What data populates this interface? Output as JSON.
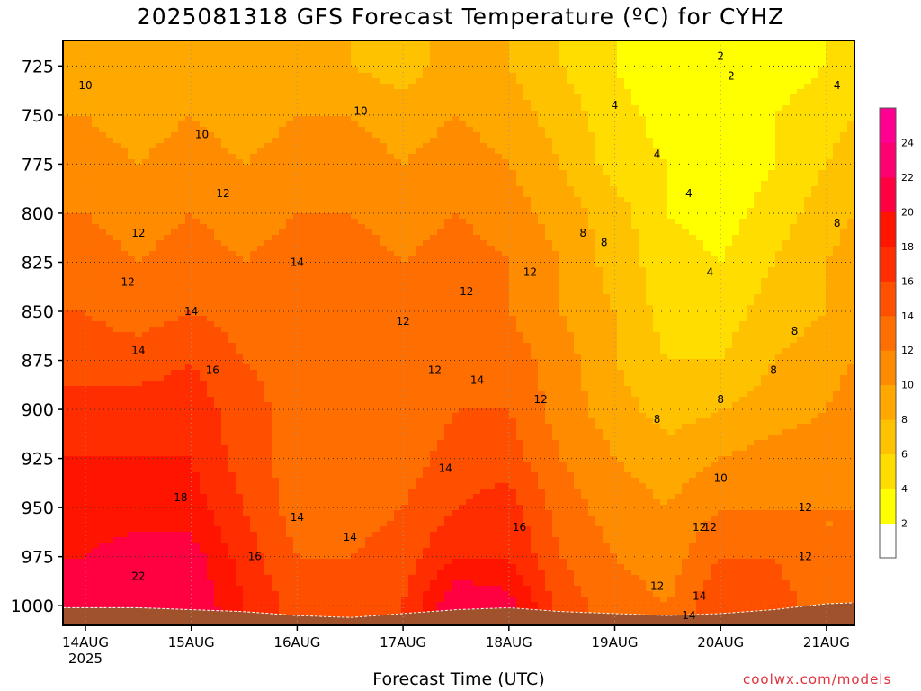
{
  "title": "2025081318 GFS Forecast Temperature (ºC) for CYHZ",
  "xlabel": "Forecast Time (UTC)",
  "credit": "coolwx.com/models",
  "chart_data": {
    "type": "heatmap",
    "title": "2025081318 GFS Forecast Temperature (ºC) for CYHZ",
    "xlabel": "Forecast Time (UTC)",
    "ylabel": "",
    "x_ticks": [
      "14AUG",
      "15AUG",
      "16AUG",
      "17AUG",
      "18AUG",
      "19AUG",
      "20AUG",
      "21AUG"
    ],
    "x_tick_year": "2025",
    "xlim": [
      "2025-08-13 18Z",
      "2025-08-21 06Z"
    ],
    "y_ticks": [
      725,
      750,
      775,
      800,
      825,
      850,
      875,
      900,
      925,
      950,
      975,
      1000
    ],
    "ylim": [
      1010,
      712
    ],
    "y_unit": "hPa",
    "colorbar": {
      "ticks": [
        2,
        4,
        6,
        8,
        10,
        12,
        14,
        16,
        18,
        20,
        22,
        24
      ],
      "colors": [
        "#ffffff",
        "#ffff00",
        "#ffdd00",
        "#ffc200",
        "#ffa800",
        "#ff8c00",
        "#ff6e00",
        "#ff5000",
        "#ff2d00",
        "#ff1400",
        "#ff0040",
        "#ff0070",
        "#ff0090"
      ]
    },
    "contour_interval": 2,
    "grid": true,
    "terrain_color": "#a0522d",
    "pressure_levels": [
      725,
      750,
      775,
      800,
      825,
      850,
      875,
      900,
      925,
      950,
      975,
      1000
    ],
    "time_days": [
      0,
      0.5,
      1,
      1.5,
      2,
      2.5,
      3,
      3.5,
      4,
      4.5,
      5,
      5.5,
      6,
      6.5,
      7,
      7.5
    ],
    "temperature_grid": [
      [
        9,
        8,
        9,
        8,
        10,
        8,
        7,
        9,
        8,
        6,
        4,
        2,
        2,
        3,
        4,
        6
      ],
      [
        10,
        9,
        10,
        9,
        10,
        10,
        9,
        10,
        9,
        7,
        5,
        3,
        2,
        4,
        5,
        7
      ],
      [
        11,
        10,
        11,
        10,
        11,
        11,
        10,
        11,
        10,
        8,
        5,
        4,
        2,
        4,
        6,
        8
      ],
      [
        12,
        11,
        12,
        11,
        12,
        12,
        11,
        12,
        11,
        9,
        7,
        4,
        3,
        5,
        7,
        9
      ],
      [
        13,
        12,
        13,
        12,
        13,
        13,
        12,
        13,
        12,
        10,
        7,
        5,
        4,
        6,
        8,
        10
      ],
      [
        14,
        13,
        14,
        13,
        14,
        13,
        12,
        13,
        12,
        10,
        8,
        5,
        5,
        7,
        8,
        10
      ],
      [
        15,
        15,
        16,
        14,
        13,
        13,
        12,
        13,
        13,
        11,
        8,
        6,
        6,
        8,
        9,
        11
      ],
      [
        17,
        17,
        17,
        15,
        13,
        12,
        12,
        14,
        14,
        11,
        9,
        7,
        8,
        9,
        10,
        12
      ],
      [
        18,
        18,
        18,
        15,
        13,
        12,
        13,
        15,
        15,
        12,
        10,
        9,
        10,
        11,
        11,
        12
      ],
      [
        19,
        19,
        19,
        16,
        13,
        13,
        14,
        16,
        17,
        13,
        11,
        10,
        12,
        12,
        12,
        12
      ],
      [
        20,
        21,
        21,
        17,
        14,
        14,
        15,
        18,
        18,
        14,
        12,
        11,
        14,
        14,
        12,
        12
      ],
      [
        21,
        22,
        22,
        18,
        15,
        15,
        16,
        22,
        21,
        15,
        13,
        12,
        16,
        15,
        13,
        12
      ]
    ]
  }
}
